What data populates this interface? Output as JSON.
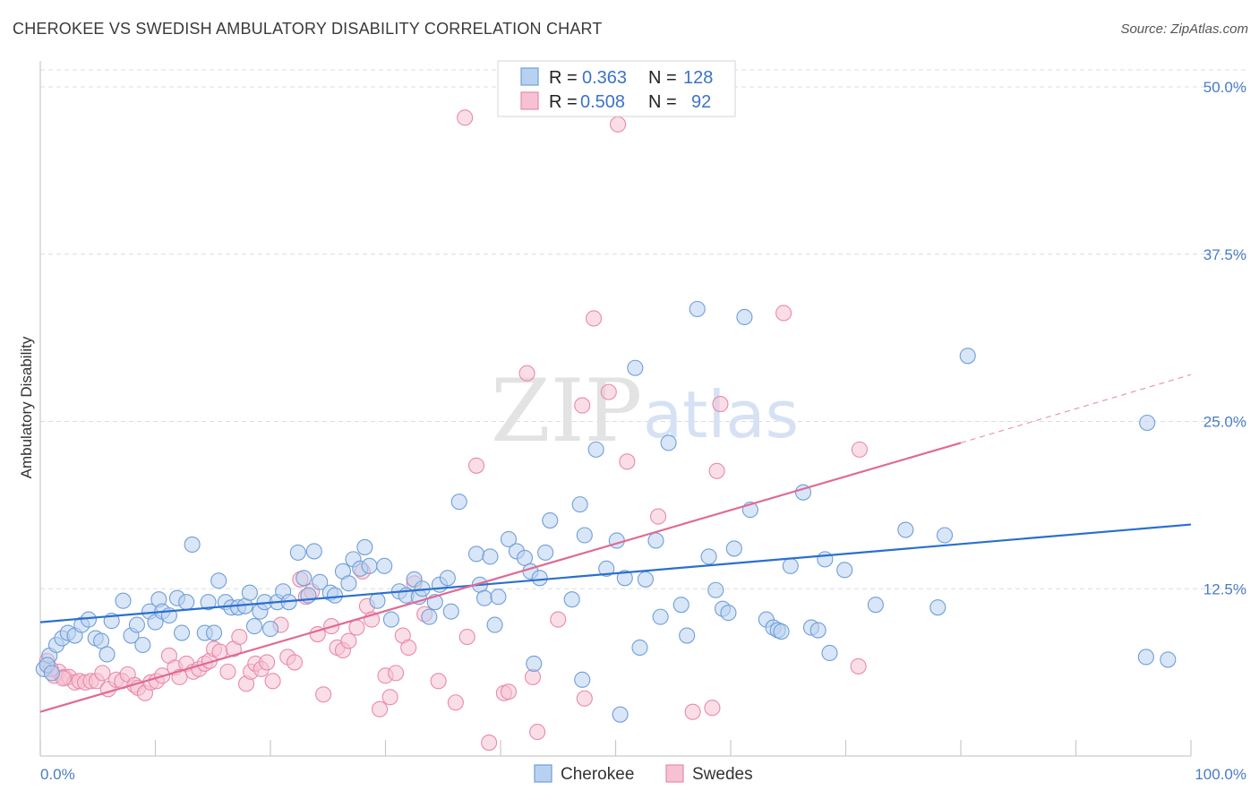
{
  "header": {
    "title": "CHEROKEE VS SWEDISH AMBULATORY DISABILITY CORRELATION CHART",
    "source": "Source: ZipAtlas.com"
  },
  "colors": {
    "blue": "#6f9fd8",
    "blue_fill": "#b9d1f0",
    "blue_line": "#2a6fd0",
    "pink": "#e98aa8",
    "pink_fill": "#f6c2d3",
    "pink_line": "#e06a94",
    "axis_text": "#4a7cc4",
    "grid": "#dcdcdc"
  },
  "watermark": {
    "zip": "ZIP",
    "atlas": "atlas"
  },
  "legend": {
    "rows": [
      {
        "r_label": "R =",
        "r_value": "0.363",
        "n_label": "N =",
        "n_value": "128"
      },
      {
        "r_label": "R =",
        "r_value": "0.508",
        "n_label": "N =",
        "n_value": "92"
      }
    ]
  },
  "bottom_legend": {
    "items": [
      "Cherokee",
      "Swedes"
    ]
  },
  "chart_data": {
    "type": "scatter",
    "title": "CHEROKEE VS SWEDISH AMBULATORY DISABILITY CORRELATION CHART",
    "xlabel": "",
    "ylabel": "Ambulatory Disability",
    "xlim": [
      0,
      100
    ],
    "ylim": [
      0,
      50
    ],
    "x_tick_labels": [
      "0.0%",
      "100.0%"
    ],
    "y_ticks": [
      12.5,
      25.0,
      37.5,
      50.0
    ],
    "y_tick_labels": [
      "12.5%",
      "25.0%",
      "37.5%",
      "50.0%"
    ],
    "grid": true,
    "legend_position": "top-center",
    "series": [
      {
        "name": "Cherokee",
        "r": 0.363,
        "n": 128,
        "trend": {
          "x": [
            0,
            100
          ],
          "y": [
            10.0,
            17.3
          ]
        },
        "points": [
          [
            0.3,
            6.5
          ],
          [
            0.8,
            7.5
          ],
          [
            1.4,
            8.3
          ],
          [
            1.9,
            8.8
          ],
          [
            2.4,
            9.2
          ],
          [
            3.0,
            9.0
          ],
          [
            3.6,
            9.8
          ],
          [
            4.2,
            10.2
          ],
          [
            4.8,
            8.8
          ],
          [
            5.3,
            8.6
          ],
          [
            5.8,
            7.6
          ],
          [
            6.2,
            10.1
          ],
          [
            7.2,
            11.6
          ],
          [
            7.9,
            9.0
          ],
          [
            8.4,
            9.8
          ],
          [
            8.9,
            8.3
          ],
          [
            9.5,
            10.8
          ],
          [
            10.0,
            10.0
          ],
          [
            10.3,
            11.7
          ],
          [
            10.6,
            10.8
          ],
          [
            11.2,
            10.5
          ],
          [
            11.9,
            11.8
          ],
          [
            12.3,
            9.2
          ],
          [
            12.7,
            11.5
          ],
          [
            13.2,
            15.8
          ],
          [
            14.3,
            9.2
          ],
          [
            14.6,
            11.5
          ],
          [
            15.1,
            9.2
          ],
          [
            15.5,
            13.1
          ],
          [
            16.1,
            11.5
          ],
          [
            16.6,
            11.1
          ],
          [
            17.2,
            11.1
          ],
          [
            17.8,
            11.2
          ],
          [
            18.2,
            12.2
          ],
          [
            18.6,
            9.7
          ],
          [
            19.1,
            10.8
          ],
          [
            19.5,
            11.5
          ],
          [
            20.0,
            9.5
          ],
          [
            20.6,
            11.5
          ],
          [
            21.1,
            12.3
          ],
          [
            21.6,
            11.5
          ],
          [
            22.4,
            15.2
          ],
          [
            22.9,
            13.3
          ],
          [
            23.3,
            12.0
          ],
          [
            23.8,
            15.3
          ],
          [
            24.3,
            13.0
          ],
          [
            25.2,
            12.2
          ],
          [
            25.6,
            12.0
          ],
          [
            26.3,
            13.8
          ],
          [
            26.8,
            12.9
          ],
          [
            27.2,
            14.7
          ],
          [
            27.8,
            14.0
          ],
          [
            28.2,
            15.6
          ],
          [
            28.6,
            14.2
          ],
          [
            29.3,
            11.6
          ],
          [
            29.9,
            14.2
          ],
          [
            30.5,
            10.2
          ],
          [
            31.2,
            12.3
          ],
          [
            31.8,
            12.0
          ],
          [
            32.5,
            13.2
          ],
          [
            32.9,
            11.9
          ],
          [
            33.2,
            12.5
          ],
          [
            34.3,
            11.5
          ],
          [
            34.7,
            12.8
          ],
          [
            35.4,
            13.3
          ],
          [
            35.7,
            10.8
          ],
          [
            36.4,
            19.0
          ],
          [
            37.9,
            15.1
          ],
          [
            38.2,
            12.8
          ],
          [
            38.6,
            11.8
          ],
          [
            39.1,
            14.9
          ],
          [
            39.5,
            9.8
          ],
          [
            39.8,
            11.9
          ],
          [
            40.7,
            16.2
          ],
          [
            41.4,
            15.3
          ],
          [
            42.1,
            14.8
          ],
          [
            42.6,
            13.8
          ],
          [
            42.9,
            6.9
          ],
          [
            43.4,
            13.3
          ],
          [
            43.9,
            15.2
          ],
          [
            44.3,
            17.6
          ],
          [
            46.2,
            11.7
          ],
          [
            47.3,
            16.5
          ],
          [
            47.1,
            5.7
          ],
          [
            48.3,
            22.9
          ],
          [
            49.2,
            14.0
          ],
          [
            50.1,
            16.1
          ],
          [
            50.4,
            3.1
          ],
          [
            50.8,
            13.3
          ],
          [
            51.7,
            29.0
          ],
          [
            52.1,
            8.1
          ],
          [
            52.6,
            13.2
          ],
          [
            53.5,
            16.1
          ],
          [
            53.9,
            10.4
          ],
          [
            54.6,
            23.4
          ],
          [
            55.7,
            11.3
          ],
          [
            56.2,
            9.0
          ],
          [
            57.1,
            33.4
          ],
          [
            58.1,
            14.9
          ],
          [
            58.7,
            12.4
          ],
          [
            59.3,
            11.0
          ],
          [
            59.8,
            10.7
          ],
          [
            60.3,
            15.5
          ],
          [
            61.2,
            32.8
          ],
          [
            61.7,
            18.4
          ],
          [
            63.1,
            10.2
          ],
          [
            63.7,
            9.6
          ],
          [
            64.1,
            9.4
          ],
          [
            64.4,
            9.3
          ],
          [
            65.2,
            14.2
          ],
          [
            66.3,
            19.7
          ],
          [
            67.0,
            9.6
          ],
          [
            67.6,
            9.4
          ],
          [
            68.2,
            14.7
          ],
          [
            68.6,
            7.7
          ],
          [
            69.9,
            13.9
          ],
          [
            72.6,
            11.3
          ],
          [
            75.2,
            16.9
          ],
          [
            78.0,
            11.1
          ],
          [
            78.6,
            16.5
          ],
          [
            80.6,
            29.9
          ],
          [
            96.2,
            24.9
          ],
          [
            98.0,
            7.2
          ],
          [
            96.1,
            7.4
          ],
          [
            0.6,
            6.8
          ],
          [
            1.0,
            6.2
          ],
          [
            46.9,
            18.8
          ],
          [
            33.8,
            10.4
          ]
        ]
      },
      {
        "name": "Swedes",
        "r": 0.508,
        "n": 92,
        "trend": {
          "x": [
            0,
            80
          ],
          "y": [
            3.3,
            23.4
          ]
        },
        "trend_dashed": {
          "x": [
            80,
            100
          ],
          "y": [
            23.4,
            28.5
          ]
        },
        "points": [
          [
            0.6,
            7.1
          ],
          [
            1.2,
            6.0
          ],
          [
            1.6,
            6.3
          ],
          [
            2.1,
            5.9
          ],
          [
            2.5,
            5.9
          ],
          [
            3.0,
            5.5
          ],
          [
            3.4,
            5.6
          ],
          [
            3.9,
            5.5
          ],
          [
            4.4,
            5.6
          ],
          [
            4.9,
            5.6
          ],
          [
            5.4,
            6.2
          ],
          [
            5.9,
            5.0
          ],
          [
            6.6,
            5.7
          ],
          [
            7.1,
            5.6
          ],
          [
            7.6,
            6.1
          ],
          [
            8.2,
            5.3
          ],
          [
            8.5,
            5.1
          ],
          [
            9.1,
            4.7
          ],
          [
            9.6,
            5.5
          ],
          [
            10.1,
            5.6
          ],
          [
            10.6,
            6.0
          ],
          [
            11.2,
            7.5
          ],
          [
            11.7,
            6.6
          ],
          [
            12.1,
            5.9
          ],
          [
            12.7,
            6.9
          ],
          [
            13.3,
            6.3
          ],
          [
            13.8,
            6.5
          ],
          [
            14.3,
            6.9
          ],
          [
            14.7,
            7.1
          ],
          [
            15.1,
            8.0
          ],
          [
            15.6,
            7.8
          ],
          [
            16.3,
            6.3
          ],
          [
            16.8,
            8.0
          ],
          [
            17.3,
            8.9
          ],
          [
            17.9,
            5.4
          ],
          [
            18.3,
            6.3
          ],
          [
            18.7,
            6.9
          ],
          [
            19.2,
            6.5
          ],
          [
            19.7,
            7.0
          ],
          [
            20.2,
            5.6
          ],
          [
            20.9,
            9.8
          ],
          [
            21.5,
            7.4
          ],
          [
            22.1,
            7.0
          ],
          [
            22.6,
            13.2
          ],
          [
            23.1,
            11.9
          ],
          [
            23.6,
            12.3
          ],
          [
            24.1,
            9.1
          ],
          [
            24.6,
            4.6
          ],
          [
            25.3,
            9.7
          ],
          [
            25.8,
            8.1
          ],
          [
            26.3,
            7.9
          ],
          [
            26.8,
            8.6
          ],
          [
            27.5,
            9.6
          ],
          [
            28.0,
            13.8
          ],
          [
            28.4,
            11.2
          ],
          [
            28.8,
            10.2
          ],
          [
            29.5,
            3.5
          ],
          [
            30.0,
            6.0
          ],
          [
            30.4,
            4.4
          ],
          [
            30.9,
            6.2
          ],
          [
            31.5,
            9.0
          ],
          [
            32.0,
            8.1
          ],
          [
            32.5,
            12.9
          ],
          [
            33.4,
            10.6
          ],
          [
            34.6,
            5.6
          ],
          [
            36.1,
            4.0
          ],
          [
            37.1,
            8.9
          ],
          [
            37.9,
            21.7
          ],
          [
            39.0,
            1.0
          ],
          [
            40.3,
            4.7
          ],
          [
            40.7,
            4.8
          ],
          [
            42.3,
            28.6
          ],
          [
            42.8,
            5.9
          ],
          [
            43.2,
            1.8
          ],
          [
            45.0,
            10.2
          ],
          [
            47.1,
            26.2
          ],
          [
            47.3,
            4.3
          ],
          [
            48.1,
            32.7
          ],
          [
            49.4,
            27.2
          ],
          [
            50.2,
            47.2
          ],
          [
            51.0,
            22.0
          ],
          [
            53.7,
            17.9
          ],
          [
            56.7,
            3.3
          ],
          [
            58.4,
            3.6
          ],
          [
            58.8,
            21.3
          ],
          [
            59.1,
            26.3
          ],
          [
            64.6,
            33.1
          ],
          [
            71.1,
            6.7
          ],
          [
            71.2,
            22.9
          ],
          [
            36.9,
            47.7
          ],
          [
            0.9,
            6.5
          ],
          [
            2.0,
            5.8
          ]
        ]
      }
    ]
  }
}
